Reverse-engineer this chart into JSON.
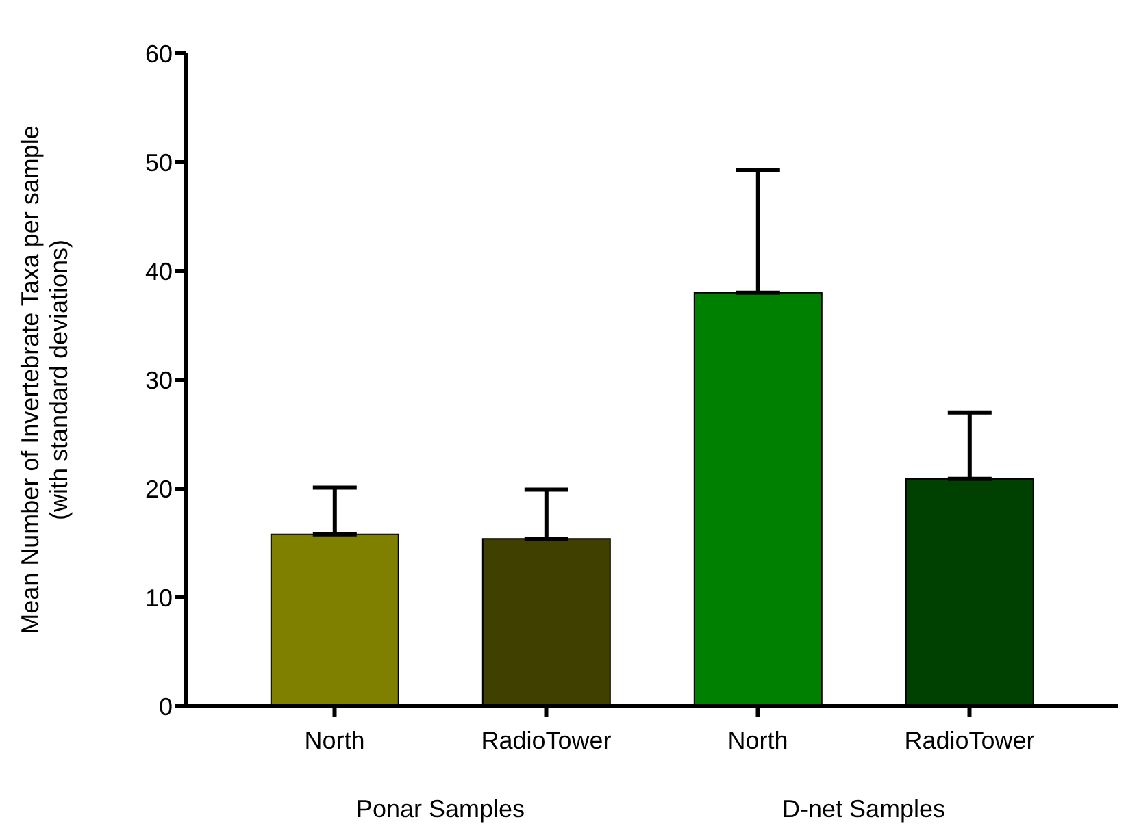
{
  "chart_data": {
    "type": "bar",
    "ylabel": "Mean Number of Invertebrate Taxa per sample\n(with standard deviations)",
    "categories": [
      "North",
      "RadioTower",
      "North",
      "RadioTower"
    ],
    "values": [
      15.8,
      15.4,
      38.0,
      20.9
    ],
    "colors": [
      "#808000",
      "#404000",
      "#008000",
      "#004000"
    ],
    "errors": [
      [
        15.8,
        20.1
      ],
      [
        15.4,
        19.9
      ],
      [
        38.0,
        49.3
      ],
      [
        20.9,
        27.0
      ]
    ],
    "annotations": [
      "Ponar Samples",
      "D-net Samples"
    ],
    "ylim": [
      0,
      60
    ],
    "yticks": [
      0,
      10,
      20,
      30,
      40,
      50,
      60
    ],
    "grid": false,
    "legend": false
  }
}
